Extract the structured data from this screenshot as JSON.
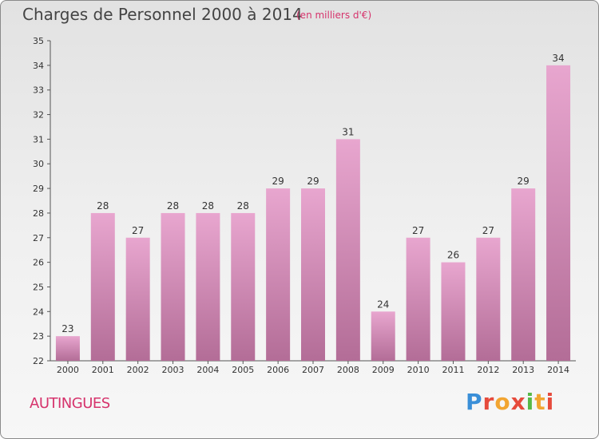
{
  "header": {
    "title": "Charges de Personnel 2000 à 2014",
    "subtitle": "(en milliers d'€)"
  },
  "footer": {
    "commune": "AUTINGUES",
    "logo": "Proxiti"
  },
  "colors": {
    "bar_top": "#e8a6cf",
    "bar_bottom": "#b36d97",
    "accent": "#d6336c",
    "logo_letters": [
      "#3a8fd8",
      "#e64b3c",
      "#f2a531",
      "#e64b3c",
      "#58b947",
      "#f2a531",
      "#e64b3c"
    ]
  },
  "chart_data": {
    "type": "bar",
    "categories": [
      "2000",
      "2001",
      "2002",
      "2003",
      "2004",
      "2005",
      "2006",
      "2007",
      "2008",
      "2009",
      "2010",
      "2011",
      "2012",
      "2013",
      "2014"
    ],
    "values": [
      23,
      28,
      27,
      28,
      28,
      28,
      29,
      29,
      31,
      24,
      27,
      26,
      27,
      29,
      34
    ],
    "ylim": [
      22,
      35
    ],
    "yticks": [
      22,
      23,
      24,
      25,
      26,
      27,
      28,
      29,
      30,
      31,
      32,
      33,
      34,
      35
    ],
    "grid": false,
    "xlabel": "",
    "ylabel": ""
  }
}
